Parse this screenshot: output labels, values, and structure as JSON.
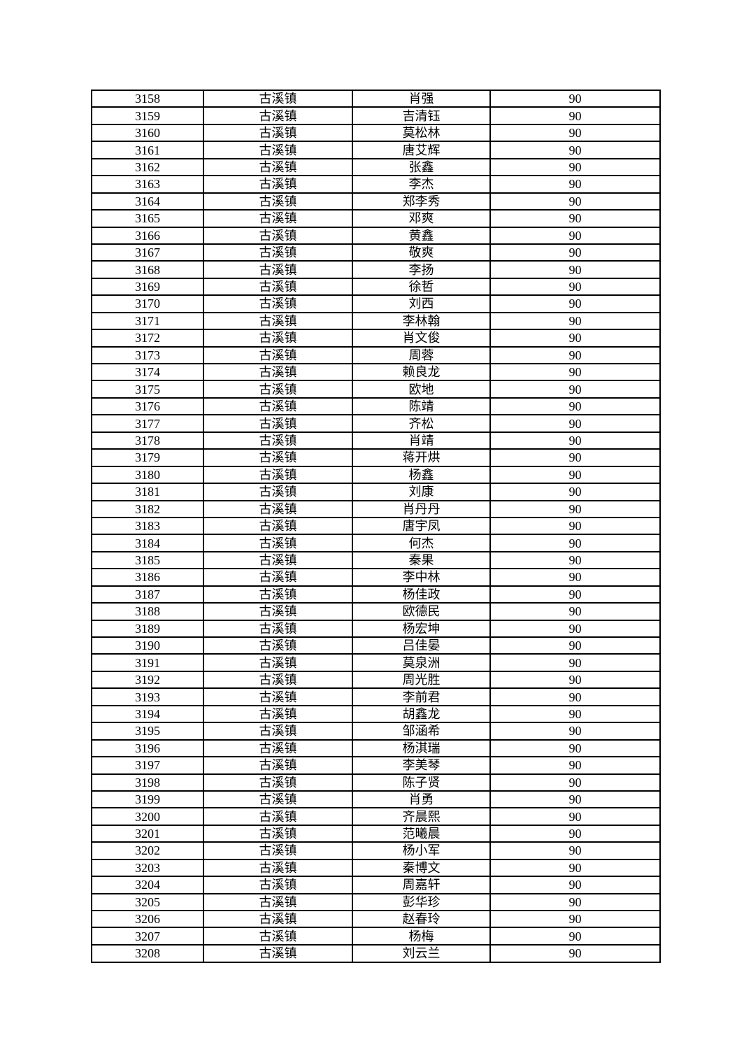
{
  "table": {
    "rows": [
      [
        "3158",
        "古溪镇",
        "肖强",
        "90"
      ],
      [
        "3159",
        "古溪镇",
        "吉清钰",
        "90"
      ],
      [
        "3160",
        "古溪镇",
        "莫松林",
        "90"
      ],
      [
        "3161",
        "古溪镇",
        "唐艾辉",
        "90"
      ],
      [
        "3162",
        "古溪镇",
        "张鑫",
        "90"
      ],
      [
        "3163",
        "古溪镇",
        "李杰",
        "90"
      ],
      [
        "3164",
        "古溪镇",
        "郑李秀",
        "90"
      ],
      [
        "3165",
        "古溪镇",
        "邓爽",
        "90"
      ],
      [
        "3166",
        "古溪镇",
        "黄鑫",
        "90"
      ],
      [
        "3167",
        "古溪镇",
        "敬爽",
        "90"
      ],
      [
        "3168",
        "古溪镇",
        "李扬",
        "90"
      ],
      [
        "3169",
        "古溪镇",
        "徐哲",
        "90"
      ],
      [
        "3170",
        "古溪镇",
        "刘西",
        "90"
      ],
      [
        "3171",
        "古溪镇",
        "李林翰",
        "90"
      ],
      [
        "3172",
        "古溪镇",
        "肖文俊",
        "90"
      ],
      [
        "3173",
        "古溪镇",
        "周蓉",
        "90"
      ],
      [
        "3174",
        "古溪镇",
        "赖良龙",
        "90"
      ],
      [
        "3175",
        "古溪镇",
        "欧地",
        "90"
      ],
      [
        "3176",
        "古溪镇",
        "陈靖",
        "90"
      ],
      [
        "3177",
        "古溪镇",
        "齐松",
        "90"
      ],
      [
        "3178",
        "古溪镇",
        "肖靖",
        "90"
      ],
      [
        "3179",
        "古溪镇",
        "蒋开烘",
        "90"
      ],
      [
        "3180",
        "古溪镇",
        "杨鑫",
        "90"
      ],
      [
        "3181",
        "古溪镇",
        "刘康",
        "90"
      ],
      [
        "3182",
        "古溪镇",
        "肖丹丹",
        "90"
      ],
      [
        "3183",
        "古溪镇",
        "唐宇凤",
        "90"
      ],
      [
        "3184",
        "古溪镇",
        "何杰",
        "90"
      ],
      [
        "3185",
        "古溪镇",
        "秦果",
        "90"
      ],
      [
        "3186",
        "古溪镇",
        "李中林",
        "90"
      ],
      [
        "3187",
        "古溪镇",
        "杨佳政",
        "90"
      ],
      [
        "3188",
        "古溪镇",
        "欧德民",
        "90"
      ],
      [
        "3189",
        "古溪镇",
        "杨宏坤",
        "90"
      ],
      [
        "3190",
        "古溪镇",
        "吕佳晏",
        "90"
      ],
      [
        "3191",
        "古溪镇",
        "莫泉洲",
        "90"
      ],
      [
        "3192",
        "古溪镇",
        "周光胜",
        "90"
      ],
      [
        "3193",
        "古溪镇",
        "李前君",
        "90"
      ],
      [
        "3194",
        "古溪镇",
        "胡鑫龙",
        "90"
      ],
      [
        "3195",
        "古溪镇",
        "邹涵希",
        "90"
      ],
      [
        "3196",
        "古溪镇",
        "杨淇瑞",
        "90"
      ],
      [
        "3197",
        "古溪镇",
        "李美琴",
        "90"
      ],
      [
        "3198",
        "古溪镇",
        "陈子贤",
        "90"
      ],
      [
        "3199",
        "古溪镇",
        "肖勇",
        "90"
      ],
      [
        "3200",
        "古溪镇",
        "齐晨熙",
        "90"
      ],
      [
        "3201",
        "古溪镇",
        "范曦晨",
        "90"
      ],
      [
        "3202",
        "古溪镇",
        "杨小军",
        "90"
      ],
      [
        "3203",
        "古溪镇",
        "秦博文",
        "90"
      ],
      [
        "3204",
        "古溪镇",
        "周嘉轩",
        "90"
      ],
      [
        "3205",
        "古溪镇",
        "彭华珍",
        "90"
      ],
      [
        "3206",
        "古溪镇",
        "赵春玲",
        "90"
      ],
      [
        "3207",
        "古溪镇",
        "杨梅",
        "90"
      ],
      [
        "3208",
        "古溪镇",
        "刘云兰",
        "90"
      ]
    ]
  }
}
